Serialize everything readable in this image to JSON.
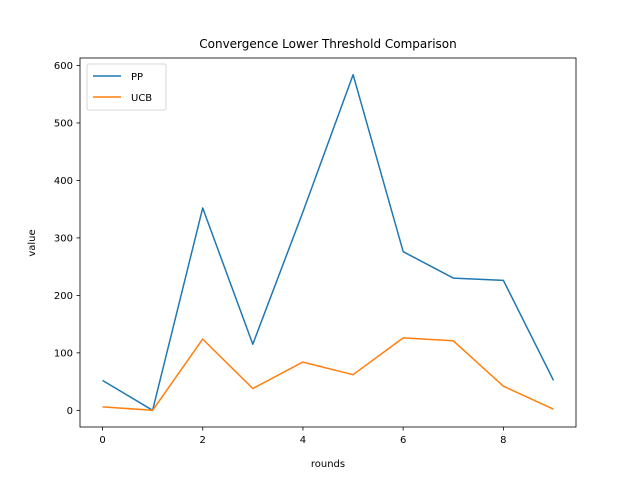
{
  "chart_data": {
    "type": "line",
    "title": "Convergence Lower Threshold Comparison",
    "xlabel": "rounds",
    "ylabel": "value",
    "x": [
      0,
      1,
      2,
      3,
      4,
      5,
      6,
      7,
      8,
      9
    ],
    "xlim": [
      -0.45,
      9.45
    ],
    "ylim": [
      -29,
      613
    ],
    "xticks": [
      0,
      2,
      4,
      6,
      8
    ],
    "yticks": [
      0,
      100,
      200,
      300,
      400,
      500,
      600
    ],
    "grid": false,
    "legend_position": "top-left",
    "series": [
      {
        "name": "PP",
        "color": "#1f77b4",
        "values": [
          52,
          0,
          352,
          115,
          345,
          584,
          276,
          230,
          226,
          52
        ]
      },
      {
        "name": "UCB",
        "color": "#ff7f0e",
        "values": [
          6,
          0,
          124,
          38,
          84,
          62,
          126,
          121,
          42,
          2
        ]
      }
    ]
  }
}
